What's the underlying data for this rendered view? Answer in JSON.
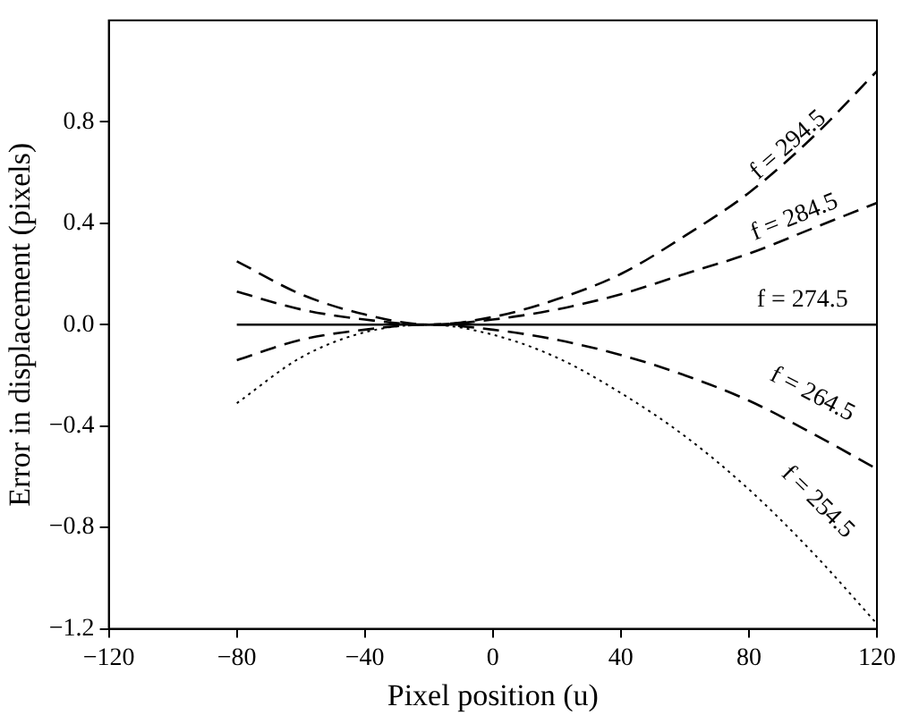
{
  "chart_data": {
    "type": "line",
    "xlabel": "Pixel position (u)",
    "ylabel": "Error in displacement (pixels)",
    "x": [
      -80,
      -60,
      -40,
      -20,
      0,
      20,
      40,
      60,
      80,
      100,
      120
    ],
    "series": [
      {
        "name": "f = 294.5",
        "color": "#000000",
        "line_style": "dashed",
        "values": [
          0.25,
          0.12,
          0.04,
          0,
          0.03,
          0.1,
          0.2,
          0.35,
          0.52,
          0.74,
          1.0
        ]
      },
      {
        "name": "f = 284.5",
        "color": "#000000",
        "line_style": "dashed",
        "values": [
          0.13,
          0.06,
          0.02,
          0,
          0.02,
          0.06,
          0.12,
          0.2,
          0.28,
          0.38,
          0.48
        ]
      },
      {
        "name": "f = 274.5",
        "color": "#000000",
        "line_style": "solid",
        "values": [
          0,
          0,
          0,
          0,
          0,
          0,
          0,
          0,
          0,
          0,
          0
        ]
      },
      {
        "name": "f = 264.5",
        "color": "#000000",
        "line_style": "dashed",
        "values": [
          -0.14,
          -0.06,
          -0.02,
          0,
          -0.02,
          -0.06,
          -0.12,
          -0.2,
          -0.3,
          -0.43,
          -0.57
        ]
      },
      {
        "name": "f = 254.5",
        "color": "#000000",
        "line_style": "dotted",
        "values": [
          -0.31,
          -0.13,
          -0.03,
          0,
          -0.04,
          -0.13,
          -0.27,
          -0.44,
          -0.65,
          -0.9,
          -1.18
        ]
      }
    ],
    "xlim": [
      -120,
      120
    ],
    "xticks": [
      {
        "value": -120,
        "label": "−120"
      },
      {
        "value": -80,
        "label": "−80"
      },
      {
        "value": -40,
        "label": "−40"
      },
      0,
      40,
      80,
      120
    ],
    "ylim": [
      -1.2,
      1.2
    ],
    "yticks": [
      {
        "value": -1.2,
        "label": "−1.2"
      },
      {
        "value": -0.8,
        "label": "−0.8"
      },
      {
        "value": -0.4,
        "label": "−0.4"
      },
      {
        "value": 0,
        "label": "0.0"
      },
      0.4,
      0.8
    ],
    "grid": false,
    "legend": false,
    "marker": "none"
  }
}
